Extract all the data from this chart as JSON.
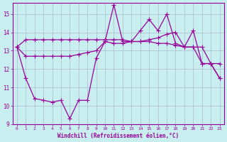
{
  "xlabel": "Windchill (Refroidissement éolien,°C)",
  "ylabel": "",
  "xlim": [
    -0.5,
    23.5
  ],
  "ylim": [
    9,
    15.6
  ],
  "yticks": [
    9,
    10,
    11,
    12,
    13,
    14,
    15
  ],
  "xticks": [
    0,
    1,
    2,
    3,
    4,
    5,
    6,
    7,
    8,
    9,
    10,
    11,
    12,
    13,
    14,
    15,
    16,
    17,
    18,
    19,
    20,
    21,
    22,
    23
  ],
  "bg_color": "#c8eef0",
  "line_color": "#990099",
  "grid_color": "#aabbcc",
  "line1_x": [
    0,
    1,
    2,
    3,
    4,
    5,
    6,
    7,
    8,
    9,
    10,
    11,
    12,
    13,
    14,
    15,
    16,
    17,
    18,
    19,
    20,
    21,
    22,
    23
  ],
  "line1_y": [
    13.2,
    13.6,
    13.6,
    13.6,
    13.6,
    13.6,
    13.6,
    13.6,
    13.6,
    13.6,
    13.6,
    13.6,
    13.6,
    13.5,
    13.5,
    13.5,
    13.4,
    13.4,
    13.3,
    13.2,
    13.2,
    13.2,
    12.3,
    12.3
  ],
  "line2_x": [
    0,
    1,
    2,
    3,
    4,
    5,
    6,
    7,
    8,
    9,
    10,
    11,
    12,
    13,
    14,
    15,
    16,
    17,
    18,
    19,
    20,
    21,
    22,
    23
  ],
  "line2_y": [
    13.2,
    12.7,
    12.7,
    12.7,
    12.7,
    12.7,
    12.7,
    12.8,
    12.9,
    13.0,
    13.5,
    13.4,
    13.4,
    13.5,
    13.5,
    13.6,
    13.7,
    13.9,
    14.0,
    13.2,
    13.2,
    12.3,
    12.3,
    11.5
  ],
  "line3_x": [
    0,
    1,
    2,
    3,
    4,
    5,
    6,
    7,
    8,
    9,
    10,
    11,
    12,
    13,
    14,
    15,
    16,
    17,
    18,
    19,
    20,
    21,
    22,
    23
  ],
  "line3_y": [
    13.2,
    11.5,
    10.4,
    10.3,
    10.2,
    10.3,
    9.3,
    10.3,
    10.3,
    12.6,
    13.5,
    15.5,
    13.5,
    13.5,
    14.1,
    14.7,
    14.1,
    15.0,
    13.4,
    13.2,
    14.1,
    12.3,
    12.3,
    11.5
  ]
}
